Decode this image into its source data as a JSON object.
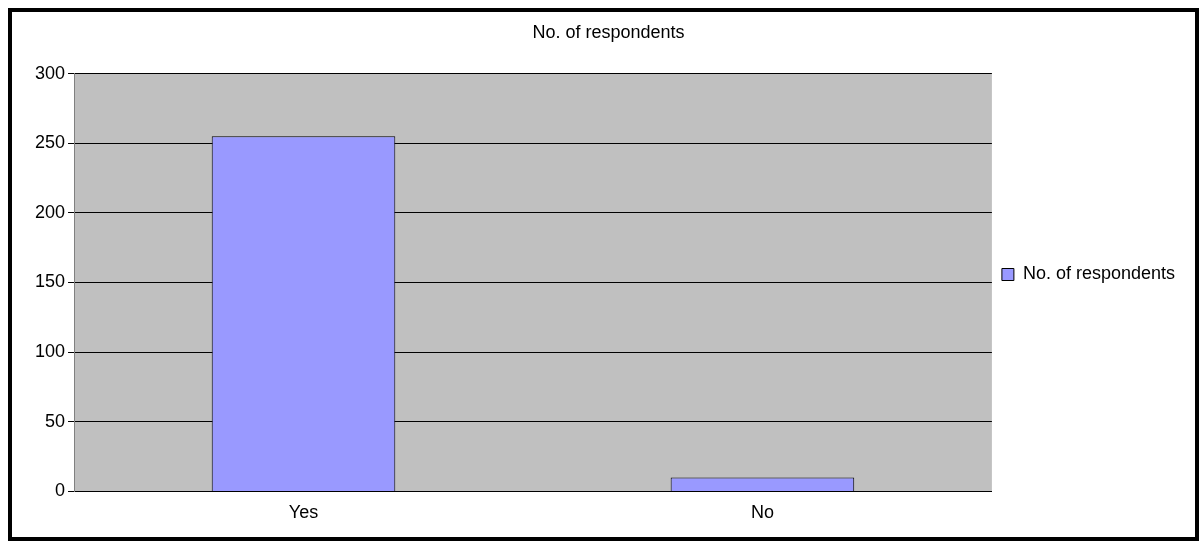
{
  "chart_data": {
    "type": "bar",
    "title": "No. of respondents",
    "categories": [
      "Yes",
      "No"
    ],
    "series": [
      {
        "name": "No. of respondents",
        "color": "#9999ff",
        "values": [
          255,
          10
        ]
      }
    ],
    "ylim": [
      0,
      300
    ],
    "yticks": [
      0,
      50,
      100,
      150,
      200,
      250,
      300
    ],
    "grid": "y",
    "legend": "right"
  }
}
